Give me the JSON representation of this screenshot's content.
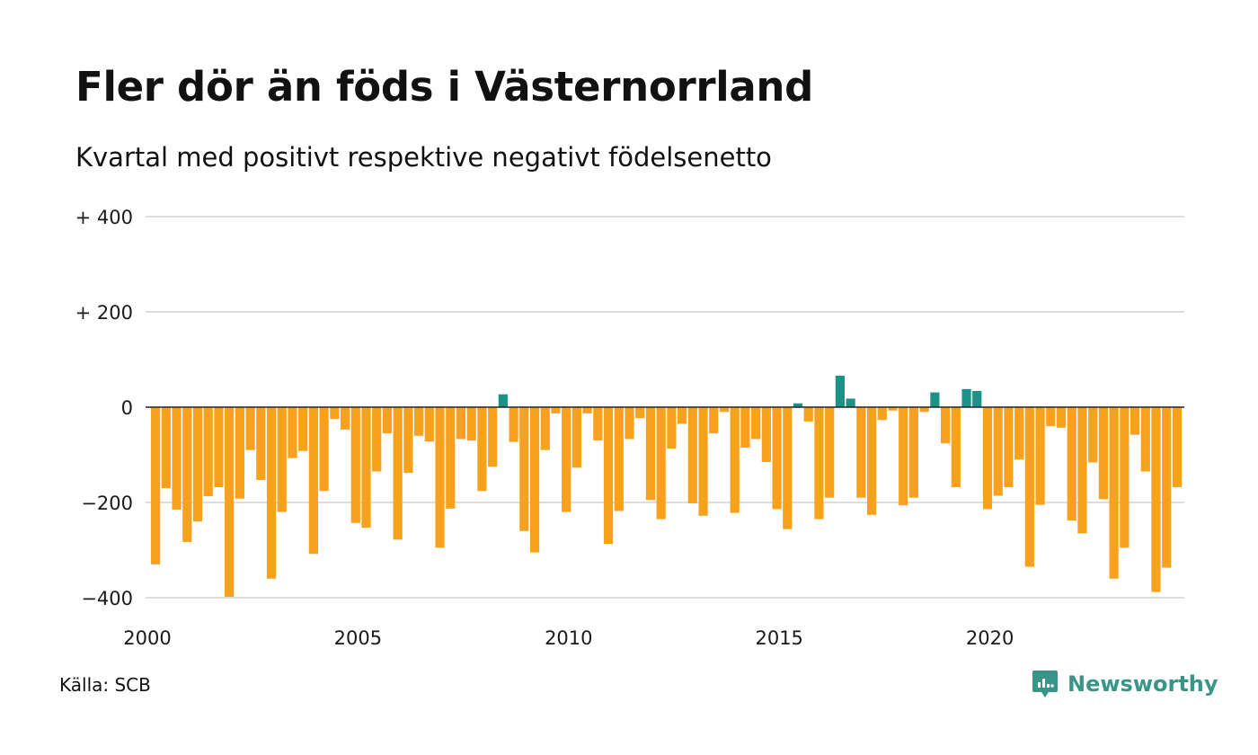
{
  "title": "Fler dör än föds i Västernorrland",
  "subtitle": "Kvartal med positivt respektive negativt födelsenetto",
  "source": "Källa: SCB",
  "brand": {
    "name": "Newsworthy",
    "icon": "newsworthy-logo-icon"
  },
  "colors": {
    "positive": "#1a9487",
    "negative": "#f7a11d",
    "grid": "#dddddd",
    "zero_line": "#222222"
  },
  "chart_data": {
    "type": "bar",
    "title": "Fler dör än föds i Västernorrland",
    "subtitle": "Kvartal med positivt respektive negativt födelsenetto",
    "xlabel": "",
    "ylabel": "",
    "x_start_year": 2000,
    "x_ticks": [
      "2000",
      "2005",
      "2010",
      "2015",
      "2020"
    ],
    "y_ticks": [
      {
        "value": 400,
        "label": "+ 400"
      },
      {
        "value": 200,
        "label": "+ 200"
      },
      {
        "value": 0,
        "label": "0"
      },
      {
        "value": -200,
        "label": "−200"
      },
      {
        "value": -400,
        "label": "−400"
      }
    ],
    "ylim": [
      -400,
      400
    ],
    "grid": true,
    "legend": "none",
    "values": [
      -330,
      -170,
      -215,
      -283,
      -240,
      -187,
      -168,
      -398,
      -192,
      -90,
      -153,
      -360,
      -220,
      -107,
      -92,
      -308,
      -176,
      -25,
      -47,
      -243,
      -253,
      -135,
      -55,
      -278,
      -138,
      -60,
      -72,
      -295,
      -213,
      -67,
      -70,
      -176,
      -125,
      27,
      -73,
      -260,
      -305,
      -90,
      -13,
      -220,
      -127,
      -13,
      -70,
      -287,
      -218,
      -67,
      -23,
      -195,
      -235,
      -87,
      -35,
      -202,
      -228,
      -55,
      -10,
      -222,
      -85,
      -67,
      -115,
      -214,
      -256,
      8,
      -30,
      -235,
      -190,
      66,
      18,
      -190,
      -226,
      -27,
      -7,
      -206,
      -190,
      -10,
      31,
      -76,
      -168,
      38,
      34,
      -214,
      -186,
      -168,
      -110,
      -335,
      -205,
      -40,
      -43,
      -238,
      -265,
      -116,
      -193,
      -360,
      -295,
      -58,
      -135,
      -388,
      -337,
      -168
    ]
  }
}
